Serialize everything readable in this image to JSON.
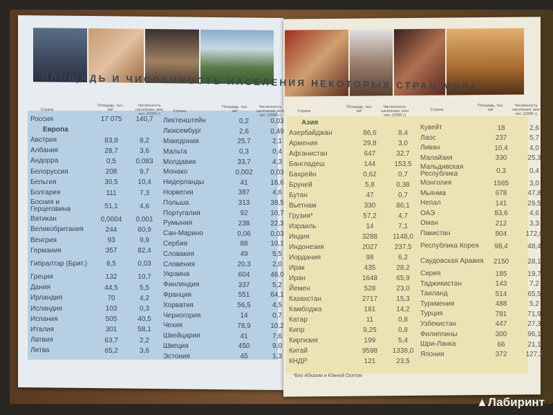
{
  "title": "ПЛОЩАДЬ И ЧИСЛЕННОСТЬ НАСЕЛЕНИЯ НЕКОТОРЫХ СТРАН МИРА",
  "headers": {
    "country": "Страна",
    "area": "Площадь, тыс. км²",
    "population": "Численность населения, млн чел. (2008 г.)"
  },
  "columns": [
    [
      {
        "name": "Россия",
        "area": "17 075",
        "pop": "140,7"
      },
      {
        "section": "Европа"
      },
      {
        "name": "Австрия",
        "area": "83,8",
        "pop": "8,2"
      },
      {
        "name": "Албания",
        "area": "28,7",
        "pop": "3,6"
      },
      {
        "name": "Андорра",
        "area": "0,5",
        "pop": "0,083"
      },
      {
        "name": "Белоруссия",
        "area": "208",
        "pop": "9,7"
      },
      {
        "name": "Бельгия",
        "area": "30,5",
        "pop": "10,4"
      },
      {
        "name": "Болгария",
        "area": "111",
        "pop": "7,3"
      },
      {
        "name": "Босния и Герцеговина",
        "area": "51,1",
        "pop": "4,6"
      },
      {
        "name": "Ватикан",
        "area": "0,0004",
        "pop": "0,001"
      },
      {
        "name": "Великобритания",
        "area": "244",
        "pop": "60,9"
      },
      {
        "name": "Венгрия",
        "area": "93",
        "pop": "9,9"
      },
      {
        "name": "Германия",
        "area": "357",
        "pop": "82,4"
      },
      {
        "name": "Гибралтар (Брит.)",
        "area": "6,5",
        "pop": "0,03"
      },
      {
        "name": "Греция",
        "area": "132",
        "pop": "10,7"
      },
      {
        "name": "Дания",
        "area": "44,5",
        "pop": "5,5"
      },
      {
        "name": "Ирландия",
        "area": "70",
        "pop": "4,2"
      },
      {
        "name": "Исландия",
        "area": "103",
        "pop": "0,3"
      },
      {
        "name": "Испания",
        "area": "505",
        "pop": "40,5"
      },
      {
        "name": "Италия",
        "area": "301",
        "pop": "58,1"
      },
      {
        "name": "Латвия",
        "area": "63,7",
        "pop": "2,2"
      },
      {
        "name": "Литва",
        "area": "65,2",
        "pop": "3,6"
      }
    ],
    [
      {
        "name": "Лихтенштейн",
        "area": "0,2",
        "pop": "0,03"
      },
      {
        "name": "Люксембург",
        "area": "2,6",
        "pop": "0,49"
      },
      {
        "name": "Македония",
        "area": "25,7",
        "pop": "2,1"
      },
      {
        "name": "Мальта",
        "area": "0,3",
        "pop": "0,4"
      },
      {
        "name": "Молдавия",
        "area": "33,7",
        "pop": "4,3"
      },
      {
        "name": "Монако",
        "area": "0,002",
        "pop": "0,03"
      },
      {
        "name": "Нидерланды",
        "area": "41",
        "pop": "16,6"
      },
      {
        "name": "Норвегия",
        "area": "387",
        "pop": "4,6"
      },
      {
        "name": "Польша",
        "area": "313",
        "pop": "38,5"
      },
      {
        "name": "Португалия",
        "area": "92",
        "pop": "10,7"
      },
      {
        "name": "Румыния",
        "area": "238",
        "pop": "22,3"
      },
      {
        "name": "Сан-Марино",
        "area": "0,06",
        "pop": "0,03"
      },
      {
        "name": "Сербия",
        "area": "88",
        "pop": "10,1"
      },
      {
        "name": "Словакия",
        "area": "49",
        "pop": "5,5"
      },
      {
        "name": "Словения",
        "area": "20,3",
        "pop": "2,0"
      },
      {
        "name": "Украина",
        "area": "604",
        "pop": "46,0"
      },
      {
        "name": "Финляндия",
        "area": "337",
        "pop": "5,2"
      },
      {
        "name": "Франция",
        "area": "551",
        "pop": "64,1"
      },
      {
        "name": "Хорватия",
        "area": "56,5",
        "pop": "4,5"
      },
      {
        "name": "Черногория",
        "area": "14",
        "pop": "0,7"
      },
      {
        "name": "Чехия",
        "area": "78,9",
        "pop": "10,2"
      },
      {
        "name": "Швейцария",
        "area": "41",
        "pop": "7,6"
      },
      {
        "name": "Швеция",
        "area": "450",
        "pop": "9,0"
      },
      {
        "name": "Эстония",
        "area": "45",
        "pop": "1,3"
      }
    ],
    [
      {
        "section": "Азия"
      },
      {
        "name": "Азербайджан",
        "area": "86,6",
        "pop": "8,4"
      },
      {
        "name": "Армения",
        "area": "29,8",
        "pop": "3,0"
      },
      {
        "name": "Афганистан",
        "area": "647",
        "pop": "32,7"
      },
      {
        "name": "Бангладеш",
        "area": "144",
        "pop": "153,5"
      },
      {
        "name": "Бахрейн",
        "area": "0,62",
        "pop": "0,7"
      },
      {
        "name": "Бруней",
        "area": "5,8",
        "pop": "0,38"
      },
      {
        "name": "Бутан",
        "area": "47",
        "pop": "0,7"
      },
      {
        "name": "Вьетнам",
        "area": "330",
        "pop": "86,1"
      },
      {
        "name": "Грузия*",
        "area": "57,2",
        "pop": "4,7"
      },
      {
        "name": "Израиль",
        "area": "14",
        "pop": "7,1"
      },
      {
        "name": "Индия",
        "area": "3288",
        "pop": "1148,0"
      },
      {
        "name": "Индонезия",
        "area": "2027",
        "pop": "237,5"
      },
      {
        "name": "Иордания",
        "area": "98",
        "pop": "6,2"
      },
      {
        "name": "Ирак",
        "area": "435",
        "pop": "28,2"
      },
      {
        "name": "Иран",
        "area": "1648",
        "pop": "65,9"
      },
      {
        "name": "Йемен",
        "area": "528",
        "pop": "23,0"
      },
      {
        "name": "Казахстан",
        "area": "2717",
        "pop": "15,3"
      },
      {
        "name": "Камбоджа",
        "area": "181",
        "pop": "14,2"
      },
      {
        "name": "Катар",
        "area": "11",
        "pop": "0,8"
      },
      {
        "name": "Кипр",
        "area": "9,25",
        "pop": "0,8"
      },
      {
        "name": "Киргизия",
        "area": "199",
        "pop": "5,4"
      },
      {
        "name": "Китай",
        "area": "9598",
        "pop": "1338,0"
      },
      {
        "name": "КНДР",
        "area": "121",
        "pop": "23,5"
      }
    ],
    [
      {
        "name": "Кувейт",
        "area": "18",
        "pop": "2,6"
      },
      {
        "name": "Лаос",
        "area": "237",
        "pop": "5,7"
      },
      {
        "name": "Ливан",
        "area": "10,4",
        "pop": "4,0"
      },
      {
        "name": "Малайзия",
        "area": "330",
        "pop": "25,3"
      },
      {
        "name": "Мальдивская Республика",
        "area": "0,3",
        "pop": "0,4"
      },
      {
        "name": "Монголия",
        "area": "1565",
        "pop": "3,0"
      },
      {
        "name": "Мьянма",
        "area": "678",
        "pop": "47,8"
      },
      {
        "name": "Непал",
        "area": "141",
        "pop": "29,5"
      },
      {
        "name": "ОАЭ",
        "area": "83,6",
        "pop": "4,6"
      },
      {
        "name": "Оман",
        "area": "212",
        "pop": "3,3"
      },
      {
        "name": "Пакистан",
        "area": "804",
        "pop": "172,8"
      },
      {
        "name": "Республика Корея",
        "area": "98,4",
        "pop": "48,4"
      },
      {
        "name": "Саудовская Аравия",
        "area": "2150",
        "pop": "28,1"
      },
      {
        "name": "Сирия",
        "area": "185",
        "pop": "19,7"
      },
      {
        "name": "Таджикистан",
        "area": "143",
        "pop": "7,2"
      },
      {
        "name": "Таиланд",
        "area": "514",
        "pop": "65,5"
      },
      {
        "name": "Туркмения",
        "area": "488",
        "pop": "5,2"
      },
      {
        "name": "Турция",
        "area": "781",
        "pop": "71,9"
      },
      {
        "name": "Узбекистан",
        "area": "447",
        "pop": "27,3"
      },
      {
        "name": "Филиппины",
        "area": "300",
        "pop": "96,1"
      },
      {
        "name": "Шри-Ланка",
        "area": "66",
        "pop": "21,1"
      },
      {
        "name": "Япония",
        "area": "372",
        "pop": "127,3"
      }
    ]
  ],
  "footnote": "*Без Абхазии и Южной Осетии",
  "watermark": "Лабиринт"
}
